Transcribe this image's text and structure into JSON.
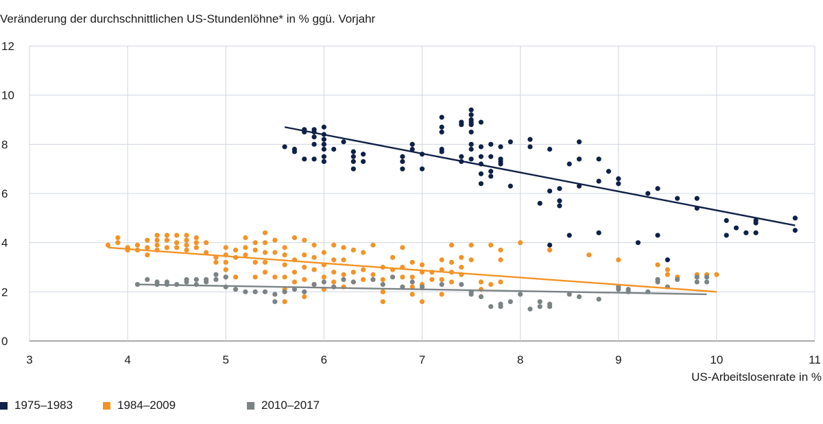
{
  "chart_data": {
    "type": "scatter",
    "title": "Veränderung der durchschnittlichen US-Stundenlöhne* in % ggü. Vorjahr",
    "xlabel": "US-Arbeitslosenrate in %",
    "ylabel": "Veränderung der durchschnittlichen US-Stundenlöhne* in % ggü. Vorjahr",
    "xlim": [
      3,
      11
    ],
    "ylim": [
      0,
      12
    ],
    "xticks": [
      "3",
      "4",
      "5",
      "6",
      "7",
      "8",
      "9",
      "10",
      "11"
    ],
    "yticks": [
      "0",
      "2",
      "4",
      "6",
      "8",
      "10",
      "12"
    ],
    "grid": "vertical and horizontal",
    "legend_position": "bottom",
    "series": [
      {
        "name": "1975–1983",
        "color": "#0f2147",
        "trend": [
          [
            5.6,
            8.7
          ],
          [
            10.8,
            4.7
          ]
        ],
        "points": [
          [
            5.6,
            7.9
          ],
          [
            5.7,
            7.7
          ],
          [
            5.7,
            7.8
          ],
          [
            5.8,
            7.4
          ],
          [
            5.8,
            8.5
          ],
          [
            5.8,
            8.6
          ],
          [
            5.9,
            8.6
          ],
          [
            5.9,
            8.5
          ],
          [
            5.9,
            8.3
          ],
          [
            5.9,
            8.0
          ],
          [
            5.9,
            7.4
          ],
          [
            6.0,
            8.7
          ],
          [
            6.0,
            8.4
          ],
          [
            6.0,
            8.2
          ],
          [
            6.0,
            8.0
          ],
          [
            6.0,
            7.8
          ],
          [
            6.0,
            7.5
          ],
          [
            6.0,
            7.3
          ],
          [
            6.1,
            7.8
          ],
          [
            6.2,
            8.1
          ],
          [
            6.3,
            7.7
          ],
          [
            6.3,
            7.5
          ],
          [
            6.3,
            7.3
          ],
          [
            6.3,
            7.0
          ],
          [
            6.4,
            7.6
          ],
          [
            6.4,
            7.3
          ],
          [
            6.8,
            7.5
          ],
          [
            6.8,
            7.3
          ],
          [
            6.8,
            7.0
          ],
          [
            6.9,
            8.0
          ],
          [
            6.9,
            7.8
          ],
          [
            7.0,
            7.6
          ],
          [
            7.0,
            7.0
          ],
          [
            7.2,
            9.1
          ],
          [
            7.2,
            8.7
          ],
          [
            7.2,
            8.5
          ],
          [
            7.2,
            7.8
          ],
          [
            7.2,
            7.7
          ],
          [
            7.4,
            8.9
          ],
          [
            7.4,
            8.8
          ],
          [
            7.4,
            7.5
          ],
          [
            7.4,
            7.3
          ],
          [
            7.5,
            9.4
          ],
          [
            7.5,
            9.2
          ],
          [
            7.5,
            9.0
          ],
          [
            7.5,
            8.9
          ],
          [
            7.5,
            8.8
          ],
          [
            7.5,
            8.5
          ],
          [
            7.5,
            8.0
          ],
          [
            7.5,
            7.8
          ],
          [
            7.5,
            7.4
          ],
          [
            7.6,
            8.9
          ],
          [
            7.6,
            7.9
          ],
          [
            7.6,
            7.5
          ],
          [
            7.6,
            7.2
          ],
          [
            7.6,
            6.8
          ],
          [
            7.6,
            6.4
          ],
          [
            7.7,
            8.0
          ],
          [
            7.7,
            7.5
          ],
          [
            7.7,
            6.9
          ],
          [
            7.7,
            6.7
          ],
          [
            7.8,
            7.9
          ],
          [
            7.8,
            7.4
          ],
          [
            7.8,
            7.3
          ],
          [
            7.8,
            7.2
          ],
          [
            7.9,
            8.1
          ],
          [
            7.9,
            6.3
          ],
          [
            8.1,
            8.2
          ],
          [
            8.1,
            7.9
          ],
          [
            8.2,
            5.6
          ],
          [
            8.3,
            7.8
          ],
          [
            8.3,
            6.1
          ],
          [
            8.3,
            3.9
          ],
          [
            8.4,
            6.2
          ],
          [
            8.4,
            5.7
          ],
          [
            8.4,
            5.5
          ],
          [
            8.5,
            7.2
          ],
          [
            8.5,
            4.3
          ],
          [
            8.6,
            8.1
          ],
          [
            8.6,
            7.4
          ],
          [
            8.6,
            6.3
          ],
          [
            8.8,
            7.4
          ],
          [
            8.8,
            6.5
          ],
          [
            8.8,
            4.4
          ],
          [
            8.9,
            6.9
          ],
          [
            9.0,
            6.6
          ],
          [
            9.0,
            6.4
          ],
          [
            9.2,
            4.0
          ],
          [
            9.3,
            6.0
          ],
          [
            9.4,
            6.2
          ],
          [
            9.4,
            4.3
          ],
          [
            9.5,
            3.3
          ],
          [
            9.6,
            5.8
          ],
          [
            9.8,
            5.8
          ],
          [
            9.8,
            5.4
          ],
          [
            10.1,
            4.9
          ],
          [
            10.1,
            4.3
          ],
          [
            10.2,
            4.6
          ],
          [
            10.3,
            4.4
          ],
          [
            10.4,
            4.9
          ],
          [
            10.4,
            4.8
          ],
          [
            10.4,
            4.4
          ],
          [
            10.8,
            5.0
          ],
          [
            10.8,
            4.5
          ]
        ]
      },
      {
        "name": "1984–2009",
        "color": "#f39325",
        "trend": [
          [
            3.8,
            3.8
          ],
          [
            10.0,
            2.0
          ]
        ],
        "points": [
          [
            3.8,
            3.9
          ],
          [
            3.9,
            4.2
          ],
          [
            3.9,
            4.0
          ],
          [
            4.0,
            3.8
          ],
          [
            4.0,
            3.7
          ],
          [
            4.1,
            3.9
          ],
          [
            4.1,
            3.7
          ],
          [
            4.2,
            4.1
          ],
          [
            4.2,
            3.8
          ],
          [
            4.2,
            3.5
          ],
          [
            4.3,
            4.3
          ],
          [
            4.3,
            4.1
          ],
          [
            4.3,
            3.9
          ],
          [
            4.3,
            3.7
          ],
          [
            4.4,
            4.3
          ],
          [
            4.4,
            4.1
          ],
          [
            4.4,
            3.8
          ],
          [
            4.5,
            4.3
          ],
          [
            4.5,
            4.0
          ],
          [
            4.5,
            3.8
          ],
          [
            4.6,
            4.3
          ],
          [
            4.6,
            4.1
          ],
          [
            4.6,
            3.9
          ],
          [
            4.6,
            3.7
          ],
          [
            4.7,
            4.2
          ],
          [
            4.7,
            4.0
          ],
          [
            4.7,
            3.8
          ],
          [
            4.8,
            3.6
          ],
          [
            4.8,
            4.0
          ],
          [
            4.9,
            3.4
          ],
          [
            4.9,
            3.2
          ],
          [
            5.0,
            3.8
          ],
          [
            5.0,
            3.5
          ],
          [
            5.0,
            3.2
          ],
          [
            5.0,
            2.9
          ],
          [
            5.0,
            2.6
          ],
          [
            5.1,
            3.7
          ],
          [
            5.1,
            3.4
          ],
          [
            5.1,
            2.6
          ],
          [
            5.2,
            4.2
          ],
          [
            5.2,
            3.8
          ],
          [
            5.2,
            3.5
          ],
          [
            5.3,
            4.0
          ],
          [
            5.3,
            3.7
          ],
          [
            5.3,
            3.2
          ],
          [
            5.3,
            2.6
          ],
          [
            5.4,
            4.4
          ],
          [
            5.4,
            4.0
          ],
          [
            5.4,
            3.6
          ],
          [
            5.4,
            3.2
          ],
          [
            5.4,
            2.8
          ],
          [
            5.5,
            4.1
          ],
          [
            5.5,
            3.6
          ],
          [
            5.5,
            2.6
          ],
          [
            5.6,
            3.8
          ],
          [
            5.6,
            3.5
          ],
          [
            5.6,
            3.1
          ],
          [
            5.6,
            2.6
          ],
          [
            5.6,
            2.1
          ],
          [
            5.6,
            1.6
          ],
          [
            5.7,
            4.2
          ],
          [
            5.7,
            3.3
          ],
          [
            5.7,
            2.8
          ],
          [
            5.7,
            2.4
          ],
          [
            5.8,
            4.1
          ],
          [
            5.8,
            3.5
          ],
          [
            5.8,
            3.0
          ],
          [
            5.8,
            2.5
          ],
          [
            5.8,
            1.8
          ],
          [
            5.9,
            3.9
          ],
          [
            5.9,
            3.4
          ],
          [
            5.9,
            2.9
          ],
          [
            5.9,
            2.3
          ],
          [
            6.0,
            3.6
          ],
          [
            6.0,
            3.1
          ],
          [
            6.0,
            2.6
          ],
          [
            6.0,
            2.1
          ],
          [
            6.1,
            3.9
          ],
          [
            6.1,
            3.3
          ],
          [
            6.1,
            2.8
          ],
          [
            6.1,
            2.4
          ],
          [
            6.2,
            3.8
          ],
          [
            6.2,
            3.3
          ],
          [
            6.2,
            2.7
          ],
          [
            6.2,
            2.2
          ],
          [
            6.3,
            3.7
          ],
          [
            6.3,
            2.8
          ],
          [
            6.3,
            2.4
          ],
          [
            6.4,
            3.6
          ],
          [
            6.4,
            2.9
          ],
          [
            6.4,
            2.5
          ],
          [
            6.5,
            3.9
          ],
          [
            6.5,
            2.7
          ],
          [
            6.6,
            3.0
          ],
          [
            6.6,
            2.5
          ],
          [
            6.6,
            2.0
          ],
          [
            6.6,
            1.6
          ],
          [
            6.7,
            3.4
          ],
          [
            6.7,
            2.9
          ],
          [
            6.8,
            3.8
          ],
          [
            6.8,
            3.0
          ],
          [
            6.8,
            2.6
          ],
          [
            6.9,
            3.2
          ],
          [
            6.9,
            2.6
          ],
          [
            6.9,
            2.2
          ],
          [
            6.9,
            1.9
          ],
          [
            7.0,
            3.1
          ],
          [
            7.0,
            2.8
          ],
          [
            7.0,
            2.3
          ],
          [
            7.0,
            1.6
          ],
          [
            7.1,
            2.8
          ],
          [
            7.1,
            2.5
          ],
          [
            7.2,
            3.3
          ],
          [
            7.2,
            2.9
          ],
          [
            7.2,
            2.5
          ],
          [
            7.2,
            1.9
          ],
          [
            7.3,
            3.9
          ],
          [
            7.3,
            3.2
          ],
          [
            7.3,
            2.8
          ],
          [
            7.3,
            2.4
          ],
          [
            7.4,
            3.4
          ],
          [
            7.4,
            3.0
          ],
          [
            7.4,
            2.7
          ],
          [
            7.5,
            3.9
          ],
          [
            7.5,
            3.3
          ],
          [
            7.6,
            2.4
          ],
          [
            7.6,
            2.1
          ],
          [
            7.7,
            3.9
          ],
          [
            7.7,
            2.3
          ],
          [
            7.8,
            3.7
          ],
          [
            7.8,
            3.3
          ],
          [
            7.8,
            2.4
          ],
          [
            8.0,
            4.0
          ],
          [
            8.3,
            3.7
          ],
          [
            8.7,
            3.5
          ],
          [
            9.0,
            3.3
          ],
          [
            9.4,
            3.1
          ],
          [
            9.4,
            2.5
          ],
          [
            9.5,
            2.9
          ],
          [
            9.5,
            2.7
          ],
          [
            9.6,
            2.6
          ],
          [
            9.8,
            2.7
          ],
          [
            9.9,
            2.7
          ],
          [
            10.0,
            2.7
          ]
        ]
      },
      {
        "name": "2010–2017",
        "color": "#7b8385",
        "trend": [
          [
            4.1,
            2.3
          ],
          [
            9.9,
            1.9
          ]
        ],
        "points": [
          [
            4.1,
            2.3
          ],
          [
            4.2,
            2.5
          ],
          [
            4.3,
            2.4
          ],
          [
            4.3,
            2.3
          ],
          [
            4.4,
            2.4
          ],
          [
            4.4,
            2.3
          ],
          [
            4.5,
            2.3
          ],
          [
            4.6,
            2.5
          ],
          [
            4.6,
            2.4
          ],
          [
            4.7,
            2.5
          ],
          [
            4.7,
            2.3
          ],
          [
            4.8,
            2.5
          ],
          [
            4.8,
            2.4
          ],
          [
            4.9,
            2.7
          ],
          [
            4.9,
            2.5
          ],
          [
            5.0,
            2.6
          ],
          [
            5.0,
            2.2
          ],
          [
            5.1,
            2.1
          ],
          [
            5.2,
            2.0
          ],
          [
            5.3,
            2.0
          ],
          [
            5.4,
            2.0
          ],
          [
            5.5,
            1.9
          ],
          [
            5.5,
            1.6
          ],
          [
            5.6,
            2.0
          ],
          [
            5.7,
            2.1
          ],
          [
            5.8,
            2.0
          ],
          [
            5.9,
            2.3
          ],
          [
            6.0,
            2.4
          ],
          [
            6.1,
            2.2
          ],
          [
            6.2,
            2.5
          ],
          [
            6.3,
            2.4
          ],
          [
            6.5,
            2.5
          ],
          [
            6.6,
            2.3
          ],
          [
            6.7,
            2.6
          ],
          [
            6.8,
            2.2
          ],
          [
            6.9,
            2.4
          ],
          [
            7.0,
            2.2
          ],
          [
            7.2,
            2.3
          ],
          [
            7.4,
            2.3
          ],
          [
            7.5,
            2.0
          ],
          [
            7.5,
            1.9
          ],
          [
            7.6,
            1.8
          ],
          [
            7.7,
            1.4
          ],
          [
            7.8,
            1.5
          ],
          [
            7.8,
            1.4
          ],
          [
            7.9,
            1.6
          ],
          [
            8.0,
            1.9
          ],
          [
            8.1,
            1.3
          ],
          [
            8.2,
            1.6
          ],
          [
            8.2,
            1.4
          ],
          [
            8.3,
            1.5
          ],
          [
            8.3,
            1.4
          ],
          [
            8.5,
            1.9
          ],
          [
            8.6,
            1.8
          ],
          [
            8.8,
            1.7
          ],
          [
            9.0,
            2.2
          ],
          [
            9.0,
            2.1
          ],
          [
            9.1,
            2.1
          ],
          [
            9.1,
            2.0
          ],
          [
            9.3,
            2.0
          ],
          [
            9.4,
            2.5
          ],
          [
            9.4,
            2.4
          ],
          [
            9.5,
            2.2
          ],
          [
            9.6,
            2.5
          ],
          [
            9.8,
            2.6
          ],
          [
            9.8,
            2.4
          ],
          [
            9.9,
            2.6
          ],
          [
            9.9,
            2.4
          ]
        ]
      }
    ]
  }
}
